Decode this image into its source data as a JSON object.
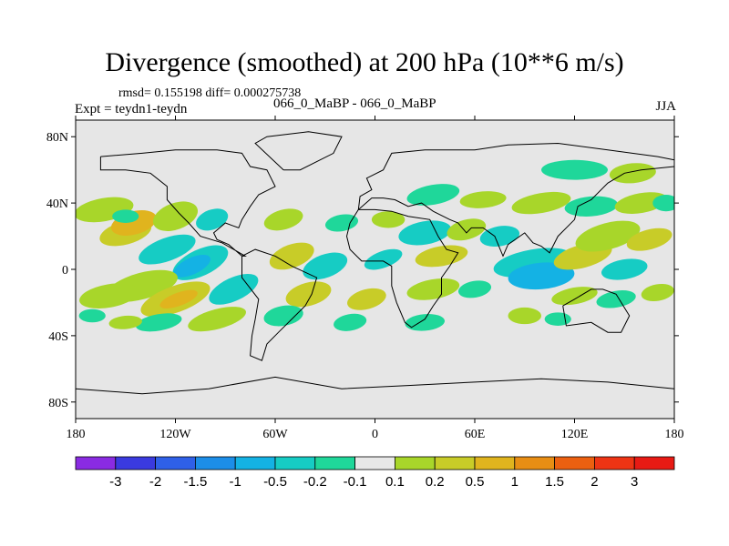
{
  "header": {
    "title": "Divergence (smoothed) at 200 hPa (10**6 m/s)",
    "stats": "rmsd= 0.155198 diff= 0.000275738",
    "expt": "Expt = teydn1-teydn",
    "case_pair": "066_0_MaBP - 066_0_MaBP",
    "season": "JJA"
  },
  "map": {
    "projection": "cylindrical-equidistant",
    "lon_range": [
      -180,
      180
    ],
    "lat_range": [
      -90,
      90
    ],
    "background": "#e6e6e6",
    "lat_ticks": [
      {
        "value": 80,
        "label": "80N"
      },
      {
        "value": 40,
        "label": "40N"
      },
      {
        "value": 0,
        "label": "0"
      },
      {
        "value": -40,
        "label": "40S"
      },
      {
        "value": -80,
        "label": "80S"
      }
    ],
    "lon_ticks": [
      {
        "value": -180,
        "label": "180"
      },
      {
        "value": -120,
        "label": "120W"
      },
      {
        "value": -60,
        "label": "60W"
      },
      {
        "value": 0,
        "label": "0"
      },
      {
        "value": 60,
        "label": "60E"
      },
      {
        "value": 120,
        "label": "120E"
      },
      {
        "value": 180,
        "label": "180"
      }
    ]
  },
  "colorbar": {
    "colors": [
      "#8a2be2",
      "#3a3adf",
      "#2f60e8",
      "#1c8ee8",
      "#14b2e4",
      "#16ccc4",
      "#1fd79a",
      "#e8e8e8",
      "#a8d62a",
      "#c8cc28",
      "#e0b41e",
      "#e88e14",
      "#ec6010",
      "#ee3414",
      "#e81a14"
    ],
    "labels": [
      "-3",
      "-2",
      "-1.5",
      "-1",
      "-0.5",
      "-0.2",
      "-0.1",
      "0.1",
      "0.2",
      "0.5",
      "1",
      "1.5",
      "2",
      "3"
    ]
  },
  "field_blobs": [
    {
      "lon": -163,
      "lat": 36,
      "rx": 18,
      "ry": 7,
      "rot": -10,
      "level": 1
    },
    {
      "lon": -150,
      "lat": 22,
      "rx": 16,
      "ry": 7,
      "rot": -15,
      "level": 2
    },
    {
      "lon": -145,
      "lat": 28,
      "rx": 14,
      "ry": 7,
      "rot": -15,
      "level": 3
    },
    {
      "lon": -120,
      "lat": 32,
      "rx": 14,
      "ry": 8,
      "rot": -20,
      "level": 1
    },
    {
      "lon": -125,
      "lat": 12,
      "rx": 18,
      "ry": 7,
      "rot": -20,
      "level": -2
    },
    {
      "lon": -105,
      "lat": 4,
      "rx": 18,
      "ry": 8,
      "rot": -25,
      "level": -2
    },
    {
      "lon": -110,
      "lat": 2,
      "rx": 12,
      "ry": 5,
      "rot": -25,
      "level": -3
    },
    {
      "lon": -98,
      "lat": 30,
      "rx": 10,
      "ry": 6,
      "rot": -20,
      "level": -2
    },
    {
      "lon": -140,
      "lat": -10,
      "rx": 22,
      "ry": 8,
      "rot": -15,
      "level": 1
    },
    {
      "lon": -160,
      "lat": -16,
      "rx": 18,
      "ry": 7,
      "rot": -10,
      "level": 1
    },
    {
      "lon": -120,
      "lat": -18,
      "rx": 22,
      "ry": 8,
      "rot": -20,
      "level": 2
    },
    {
      "lon": -118,
      "lat": -18,
      "rx": 12,
      "ry": 4,
      "rot": -20,
      "level": 3
    },
    {
      "lon": -85,
      "lat": -12,
      "rx": 16,
      "ry": 7,
      "rot": -25,
      "level": -2
    },
    {
      "lon": -95,
      "lat": -30,
      "rx": 18,
      "ry": 6,
      "rot": -15,
      "level": 1
    },
    {
      "lon": -130,
      "lat": -32,
      "rx": 14,
      "ry": 5,
      "rot": -10,
      "level": -1
    },
    {
      "lon": -170,
      "lat": -28,
      "rx": 8,
      "ry": 4,
      "rot": 0,
      "level": -1
    },
    {
      "lon": -150,
      "lat": -32,
      "rx": 10,
      "ry": 4,
      "rot": -5,
      "level": 1
    },
    {
      "lon": -55,
      "lat": 30,
      "rx": 12,
      "ry": 6,
      "rot": -15,
      "level": 1
    },
    {
      "lon": -50,
      "lat": 8,
      "rx": 14,
      "ry": 7,
      "rot": -20,
      "level": 2
    },
    {
      "lon": -30,
      "lat": 2,
      "rx": 14,
      "ry": 7,
      "rot": -20,
      "level": -2
    },
    {
      "lon": -40,
      "lat": -15,
      "rx": 14,
      "ry": 7,
      "rot": -15,
      "level": 2
    },
    {
      "lon": -55,
      "lat": -28,
      "rx": 12,
      "ry": 6,
      "rot": -10,
      "level": -1
    },
    {
      "lon": -5,
      "lat": -18,
      "rx": 12,
      "ry": 6,
      "rot": -15,
      "level": 2
    },
    {
      "lon": -15,
      "lat": -32,
      "rx": 10,
      "ry": 5,
      "rot": -10,
      "level": -1
    },
    {
      "lon": 5,
      "lat": 6,
      "rx": 12,
      "ry": 5,
      "rot": -20,
      "level": -2
    },
    {
      "lon": -20,
      "lat": 28,
      "rx": 10,
      "ry": 5,
      "rot": -10,
      "level": -1
    },
    {
      "lon": 8,
      "lat": 30,
      "rx": 10,
      "ry": 5,
      "rot": 0,
      "level": 1
    },
    {
      "lon": 30,
      "lat": 22,
      "rx": 16,
      "ry": 7,
      "rot": -10,
      "level": -2
    },
    {
      "lon": 40,
      "lat": 8,
      "rx": 16,
      "ry": 6,
      "rot": -10,
      "level": 2
    },
    {
      "lon": 55,
      "lat": 24,
      "rx": 12,
      "ry": 6,
      "rot": -15,
      "level": 1
    },
    {
      "lon": 35,
      "lat": -12,
      "rx": 16,
      "ry": 6,
      "rot": -10,
      "level": 1
    },
    {
      "lon": 30,
      "lat": -32,
      "rx": 12,
      "ry": 5,
      "rot": -5,
      "level": -1
    },
    {
      "lon": 60,
      "lat": -12,
      "rx": 10,
      "ry": 5,
      "rot": -10,
      "level": -1
    },
    {
      "lon": 75,
      "lat": 20,
      "rx": 12,
      "ry": 6,
      "rot": -10,
      "level": -2
    },
    {
      "lon": 95,
      "lat": 4,
      "rx": 24,
      "ry": 8,
      "rot": -10,
      "level": -2
    },
    {
      "lon": 100,
      "lat": -4,
      "rx": 20,
      "ry": 8,
      "rot": -5,
      "level": -3
    },
    {
      "lon": 90,
      "lat": -28,
      "rx": 10,
      "ry": 5,
      "rot": 0,
      "level": 1
    },
    {
      "lon": 110,
      "lat": -30,
      "rx": 8,
      "ry": 4,
      "rot": 0,
      "level": -1
    },
    {
      "lon": 125,
      "lat": 8,
      "rx": 18,
      "ry": 7,
      "rot": -15,
      "level": 2
    },
    {
      "lon": 140,
      "lat": 20,
      "rx": 20,
      "ry": 8,
      "rot": -15,
      "level": 1
    },
    {
      "lon": 150,
      "lat": 0,
      "rx": 14,
      "ry": 6,
      "rot": -10,
      "level": -2
    },
    {
      "lon": 165,
      "lat": 18,
      "rx": 14,
      "ry": 6,
      "rot": -15,
      "level": 2
    },
    {
      "lon": 120,
      "lat": -16,
      "rx": 14,
      "ry": 5,
      "rot": -10,
      "level": 1
    },
    {
      "lon": 145,
      "lat": -18,
      "rx": 12,
      "ry": 5,
      "rot": -10,
      "level": -1
    },
    {
      "lon": 170,
      "lat": -14,
      "rx": 10,
      "ry": 5,
      "rot": -10,
      "level": 1
    },
    {
      "lon": 35,
      "lat": 45,
      "rx": 16,
      "ry": 6,
      "rot": -10,
      "level": -1
    },
    {
      "lon": 65,
      "lat": 42,
      "rx": 14,
      "ry": 5,
      "rot": -5,
      "level": 1
    },
    {
      "lon": 100,
      "lat": 40,
      "rx": 18,
      "ry": 6,
      "rot": -10,
      "level": 1
    },
    {
      "lon": 130,
      "lat": 38,
      "rx": 16,
      "ry": 6,
      "rot": -5,
      "level": -1
    },
    {
      "lon": 160,
      "lat": 40,
      "rx": 16,
      "ry": 6,
      "rot": -10,
      "level": 1
    },
    {
      "lon": 175,
      "lat": 40,
      "rx": 8,
      "ry": 5,
      "rot": 0,
      "level": -1
    },
    {
      "lon": 120,
      "lat": 60,
      "rx": 20,
      "ry": 6,
      "rot": 0,
      "level": -1
    },
    {
      "lon": 155,
      "lat": 58,
      "rx": 14,
      "ry": 6,
      "rot": -5,
      "level": 1
    },
    {
      "lon": -150,
      "lat": 32,
      "rx": 8,
      "ry": 4,
      "rot": 0,
      "level": -1
    }
  ],
  "coast_outlines": [
    [
      [
        -165,
        68
      ],
      [
        -140,
        70
      ],
      [
        -120,
        72
      ],
      [
        -95,
        72
      ],
      [
        -80,
        70
      ],
      [
        -75,
        62
      ],
      [
        -65,
        60
      ],
      [
        -60,
        50
      ],
      [
        -70,
        45
      ],
      [
        -75,
        38
      ],
      [
        -80,
        30
      ],
      [
        -82,
        25
      ],
      [
        -90,
        28
      ],
      [
        -97,
        22
      ],
      [
        -95,
        18
      ],
      [
        -88,
        15
      ],
      [
        -80,
        8
      ],
      [
        -78,
        8
      ],
      [
        -85,
        12
      ],
      [
        -92,
        16
      ],
      [
        -105,
        20
      ],
      [
        -112,
        28
      ],
      [
        -118,
        34
      ],
      [
        -125,
        42
      ],
      [
        -125,
        50
      ],
      [
        -135,
        58
      ],
      [
        -150,
        60
      ],
      [
        -165,
        60
      ],
      [
        -165,
        68
      ]
    ],
    [
      [
        -80,
        8
      ],
      [
        -72,
        12
      ],
      [
        -60,
        8
      ],
      [
        -50,
        2
      ],
      [
        -35,
        -5
      ],
      [
        -38,
        -15
      ],
      [
        -42,
        -22
      ],
      [
        -48,
        -28
      ],
      [
        -58,
        -38
      ],
      [
        -65,
        -45
      ],
      [
        -68,
        -55
      ],
      [
        -75,
        -52
      ],
      [
        -74,
        -40
      ],
      [
        -72,
        -30
      ],
      [
        -70,
        -18
      ],
      [
        -80,
        -5
      ],
      [
        -80,
        8
      ]
    ],
    [
      [
        -15,
        28
      ],
      [
        -17,
        20
      ],
      [
        -15,
        12
      ],
      [
        -8,
        5
      ],
      [
        5,
        5
      ],
      [
        10,
        2
      ],
      [
        10,
        -10
      ],
      [
        13,
        -20
      ],
      [
        18,
        -32
      ],
      [
        22,
        -35
      ],
      [
        30,
        -30
      ],
      [
        35,
        -22
      ],
      [
        40,
        -15
      ],
      [
        40,
        -5
      ],
      [
        45,
        2
      ],
      [
        50,
        10
      ],
      [
        43,
        12
      ],
      [
        38,
        20
      ],
      [
        33,
        30
      ],
      [
        20,
        32
      ],
      [
        10,
        35
      ],
      [
        0,
        36
      ],
      [
        -10,
        36
      ],
      [
        -15,
        28
      ]
    ],
    [
      [
        -10,
        36
      ],
      [
        -9,
        44
      ],
      [
        -2,
        48
      ],
      [
        -5,
        55
      ],
      [
        5,
        60
      ],
      [
        10,
        70
      ],
      [
        30,
        72
      ],
      [
        60,
        72
      ],
      [
        80,
        75
      ],
      [
        110,
        76
      ],
      [
        140,
        72
      ],
      [
        170,
        68
      ],
      [
        180,
        66
      ],
      [
        180,
        62
      ],
      [
        160,
        60
      ],
      [
        150,
        58
      ],
      [
        140,
        52
      ],
      [
        130,
        42
      ],
      [
        122,
        38
      ],
      [
        120,
        30
      ],
      [
        110,
        20
      ],
      [
        105,
        10
      ],
      [
        100,
        14
      ],
      [
        95,
        16
      ],
      [
        90,
        22
      ],
      [
        80,
        15
      ],
      [
        77,
        8
      ],
      [
        72,
        20
      ],
      [
        65,
        25
      ],
      [
        58,
        25
      ],
      [
        55,
        22
      ],
      [
        50,
        28
      ],
      [
        45,
        30
      ],
      [
        35,
        35
      ],
      [
        28,
        40
      ],
      [
        20,
        38
      ],
      [
        12,
        42
      ],
      [
        5,
        43
      ],
      [
        -2,
        43
      ],
      [
        -10,
        36
      ]
    ],
    [
      [
        113,
        -22
      ],
      [
        115,
        -34
      ],
      [
        130,
        -32
      ],
      [
        140,
        -38
      ],
      [
        148,
        -38
      ],
      [
        153,
        -28
      ],
      [
        145,
        -15
      ],
      [
        137,
        -12
      ],
      [
        130,
        -12
      ],
      [
        120,
        -18
      ],
      [
        113,
        -22
      ]
    ],
    [
      [
        -180,
        -72
      ],
      [
        -140,
        -75
      ],
      [
        -100,
        -72
      ],
      [
        -60,
        -65
      ],
      [
        -20,
        -72
      ],
      [
        20,
        -70
      ],
      [
        60,
        -68
      ],
      [
        100,
        -66
      ],
      [
        140,
        -68
      ],
      [
        180,
        -72
      ],
      [
        180,
        -90
      ],
      [
        -180,
        -90
      ],
      [
        -180,
        -72
      ]
    ],
    [
      [
        -55,
        60
      ],
      [
        -45,
        60
      ],
      [
        -25,
        70
      ],
      [
        -20,
        80
      ],
      [
        -40,
        83
      ],
      [
        -65,
        80
      ],
      [
        -72,
        76
      ],
      [
        -55,
        60
      ]
    ]
  ]
}
